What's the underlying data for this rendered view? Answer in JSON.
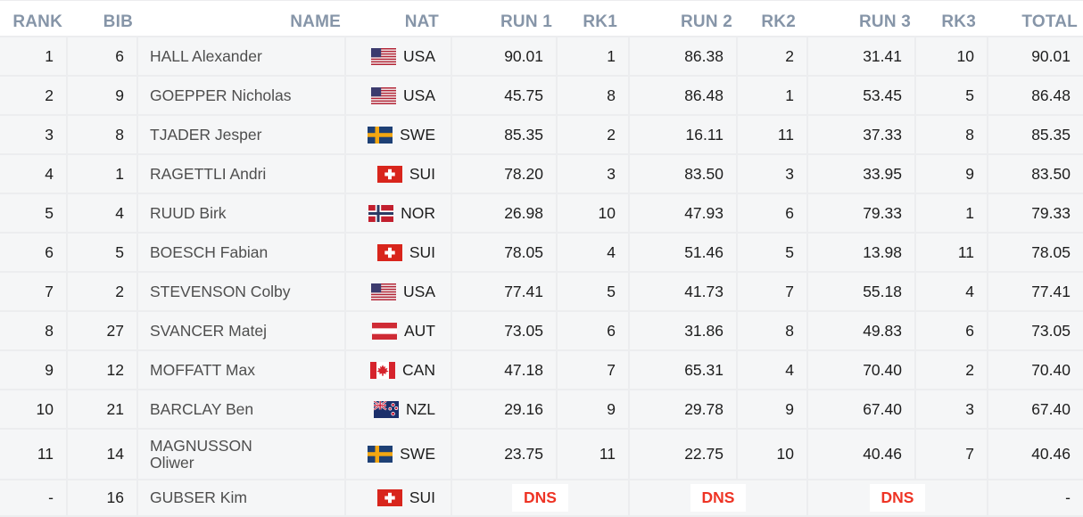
{
  "colors": {
    "header_text": "#8695A8",
    "row_background": "#F5F6F7",
    "divider": "#ECEDEF",
    "name_text": "#4E4E4E",
    "value_text": "#1D1D1D",
    "dns_red": "#EE3425",
    "dns_badge_background": "#FFFFFF"
  },
  "table": {
    "columns": [
      {
        "key": "rank",
        "label": "RANK"
      },
      {
        "key": "bib",
        "label": "BIB"
      },
      {
        "key": "name",
        "label": "NAME"
      },
      {
        "key": "nat",
        "label": "NAT"
      },
      {
        "key": "run1",
        "label": "RUN 1"
      },
      {
        "key": "rk1",
        "label": "RK1"
      },
      {
        "key": "run2",
        "label": "RUN 2"
      },
      {
        "key": "rk2",
        "label": "RK2"
      },
      {
        "key": "run3",
        "label": "RUN 3"
      },
      {
        "key": "rk3",
        "label": "RK3"
      },
      {
        "key": "total",
        "label": "TOTAL"
      }
    ],
    "rows": [
      {
        "rank": "1",
        "bib": "6",
        "name": "HALL Alexander",
        "nat": "USA",
        "run1": "90.01",
        "rk1": "1",
        "run2": "86.38",
        "rk2": "2",
        "run3": "31.41",
        "rk3": "10",
        "total": "90.01"
      },
      {
        "rank": "2",
        "bib": "9",
        "name": "GOEPPER Nicholas",
        "nat": "USA",
        "run1": "45.75",
        "rk1": "8",
        "run2": "86.48",
        "rk2": "1",
        "run3": "53.45",
        "rk3": "5",
        "total": "86.48"
      },
      {
        "rank": "3",
        "bib": "8",
        "name": "TJADER Jesper",
        "nat": "SWE",
        "run1": "85.35",
        "rk1": "2",
        "run2": "16.11",
        "rk2": "11",
        "run3": "37.33",
        "rk3": "8",
        "total": "85.35"
      },
      {
        "rank": "4",
        "bib": "1",
        "name": "RAGETTLI Andri",
        "nat": "SUI",
        "run1": "78.20",
        "rk1": "3",
        "run2": "83.50",
        "rk2": "3",
        "run3": "33.95",
        "rk3": "9",
        "total": "83.50"
      },
      {
        "rank": "5",
        "bib": "4",
        "name": "RUUD Birk",
        "nat": "NOR",
        "run1": "26.98",
        "rk1": "10",
        "run2": "47.93",
        "rk2": "6",
        "run3": "79.33",
        "rk3": "1",
        "total": "79.33"
      },
      {
        "rank": "6",
        "bib": "5",
        "name": "BOESCH Fabian",
        "nat": "SUI",
        "run1": "78.05",
        "rk1": "4",
        "run2": "51.46",
        "rk2": "5",
        "run3": "13.98",
        "rk3": "11",
        "total": "78.05"
      },
      {
        "rank": "7",
        "bib": "2",
        "name": "STEVENSON Colby",
        "nat": "USA",
        "run1": "77.41",
        "rk1": "5",
        "run2": "41.73",
        "rk2": "7",
        "run3": "55.18",
        "rk3": "4",
        "total": "77.41"
      },
      {
        "rank": "8",
        "bib": "27",
        "name": "SVANCER Matej",
        "nat": "AUT",
        "run1": "73.05",
        "rk1": "6",
        "run2": "31.86",
        "rk2": "8",
        "run3": "49.83",
        "rk3": "6",
        "total": "73.05"
      },
      {
        "rank": "9",
        "bib": "12",
        "name": "MOFFATT Max",
        "nat": "CAN",
        "run1": "47.18",
        "rk1": "7",
        "run2": "65.31",
        "rk2": "4",
        "run3": "70.40",
        "rk3": "2",
        "total": "70.40"
      },
      {
        "rank": "10",
        "bib": "21",
        "name": "BARCLAY Ben",
        "nat": "NZL",
        "run1": "29.16",
        "rk1": "9",
        "run2": "29.78",
        "rk2": "9",
        "run3": "67.40",
        "rk3": "3",
        "total": "67.40"
      },
      {
        "rank": "11",
        "bib": "14",
        "name": "MAGNUSSON\nOliwer",
        "nat": "SWE",
        "run1": "23.75",
        "rk1": "11",
        "run2": "22.75",
        "rk2": "10",
        "run3": "40.46",
        "rk3": "7",
        "total": "40.46",
        "tall": true
      },
      {
        "rank": "-",
        "bib": "16",
        "name": "GUBSER Kim",
        "nat": "SUI",
        "dns": true,
        "run1_status": "DNS",
        "run2_status": "DNS",
        "run3_status": "DNS",
        "total": "-"
      }
    ]
  }
}
